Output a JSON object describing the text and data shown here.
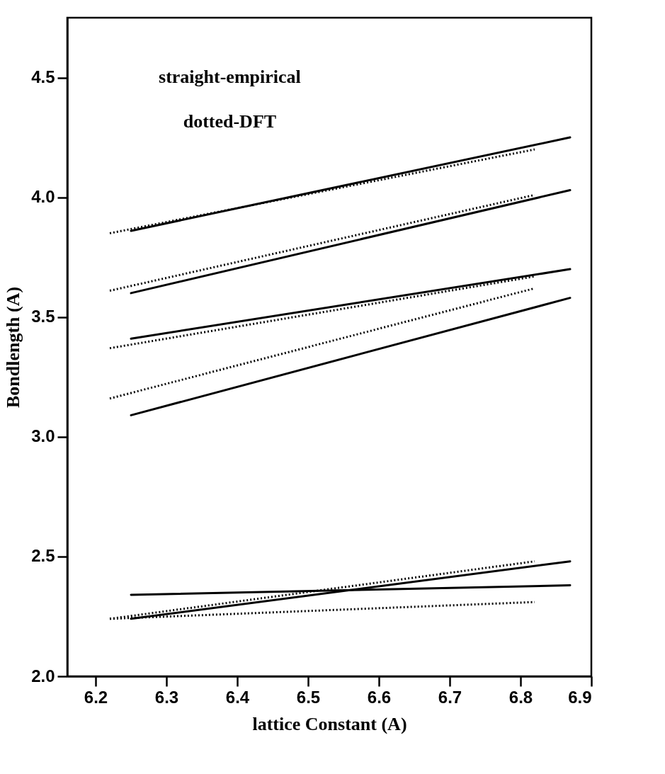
{
  "chart_data": {
    "type": "line",
    "xlabel": "lattice Constant (A)",
    "ylabel": "Bondlength (A)",
    "annotations": [
      "straight-empirical",
      "dotted-DFT"
    ],
    "xlim": [
      6.16,
      6.9
    ],
    "ylim": [
      2.0,
      4.75
    ],
    "xticks": [
      6.2,
      6.3,
      6.4,
      6.5,
      6.6,
      6.7,
      6.8,
      6.9
    ],
    "yticks": [
      {
        "value": 2,
        "label": "2.0"
      },
      2.5,
      {
        "value": 3,
        "label": "3.0"
      },
      3.5,
      {
        "value": 4,
        "label": "4.0"
      },
      4.5
    ],
    "grid": false,
    "marker": "none",
    "series": [
      {
        "color": "#000000",
        "line_style": "solid",
        "x": [
          6.25,
          6.87
        ],
        "values": [
          3.86,
          4.25
        ]
      },
      {
        "color": "#000000",
        "line_style": "dotted",
        "x": [
          6.22,
          6.82
        ],
        "values": [
          3.85,
          4.2
        ]
      },
      {
        "color": "#000000",
        "line_style": "solid",
        "x": [
          6.25,
          6.87
        ],
        "values": [
          3.6,
          4.03
        ]
      },
      {
        "color": "#000000",
        "line_style": "dotted",
        "x": [
          6.22,
          6.82
        ],
        "values": [
          3.61,
          4.01
        ]
      },
      {
        "color": "#000000",
        "line_style": "solid",
        "x": [
          6.25,
          6.87
        ],
        "values": [
          3.41,
          3.7
        ]
      },
      {
        "color": "#000000",
        "line_style": "dotted",
        "x": [
          6.22,
          6.82
        ],
        "values": [
          3.37,
          3.67
        ]
      },
      {
        "color": "#000000",
        "line_style": "solid",
        "x": [
          6.25,
          6.87
        ],
        "values": [
          3.09,
          3.58
        ]
      },
      {
        "color": "#000000",
        "line_style": "dotted",
        "x": [
          6.22,
          6.82
        ],
        "values": [
          3.16,
          3.62
        ]
      },
      {
        "color": "#000000",
        "line_style": "solid",
        "x": [
          6.25,
          6.87
        ],
        "values": [
          2.34,
          2.38
        ]
      },
      {
        "color": "#000000",
        "line_style": "solid",
        "x": [
          6.25,
          6.87
        ],
        "values": [
          2.24,
          2.48
        ]
      },
      {
        "color": "#000000",
        "line_style": "dotted",
        "x": [
          6.22,
          6.82
        ],
        "values": [
          2.24,
          2.48
        ]
      },
      {
        "color": "#000000",
        "line_style": "dotted",
        "x": [
          6.22,
          6.82
        ],
        "values": [
          2.24,
          2.31
        ]
      }
    ]
  }
}
